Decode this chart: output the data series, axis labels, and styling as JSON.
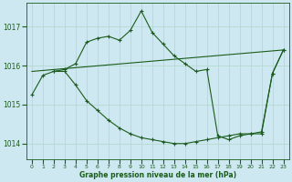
{
  "xlabel": "Graphe pression niveau de la mer (hPa)",
  "background_color": "#cde8f0",
  "grid_color": "#b0d8c8",
  "line_color": "#1a5c1a",
  "ylim": [
    1013.6,
    1017.6
  ],
  "xlim": [
    -0.5,
    23.5
  ],
  "yticks": [
    1014,
    1015,
    1016,
    1017
  ],
  "xticks": [
    0,
    1,
    2,
    3,
    4,
    5,
    6,
    7,
    8,
    9,
    10,
    11,
    12,
    13,
    14,
    15,
    16,
    17,
    18,
    19,
    20,
    21,
    22,
    23
  ],
  "series": [
    {
      "x": [
        0,
        1,
        2,
        3,
        4,
        5,
        6,
        7,
        8,
        9,
        10,
        11,
        12,
        13,
        14,
        15,
        16,
        17,
        18,
        19,
        20,
        21,
        22,
        23
      ],
      "y": [
        1015.25,
        1015.75,
        1015.85,
        1015.9,
        1016.05,
        1016.6,
        1016.7,
        1016.75,
        1016.65,
        1016.9,
        1017.4,
        1016.85,
        1016.55,
        1016.25,
        1016.05,
        1015.85,
        1015.9,
        1014.2,
        1014.1,
        1014.2,
        1014.25,
        1014.25,
        1015.8,
        1016.4
      ]
    },
    {
      "x": [
        0,
        23
      ],
      "y": [
        1015.85,
        1016.4
      ]
    },
    {
      "x": [
        2,
        3,
        4,
        5,
        6,
        7,
        8,
        9,
        10,
        11,
        12,
        13,
        14,
        15,
        16,
        17,
        18,
        19,
        20,
        21,
        22,
        23
      ],
      "y": [
        1015.85,
        1015.85,
        1015.5,
        1015.1,
        1014.85,
        1014.6,
        1014.4,
        1014.25,
        1014.15,
        1014.1,
        1014.05,
        1014.0,
        1014.0,
        1014.05,
        1014.1,
        1014.15,
        1014.2,
        1014.25,
        1014.25,
        1014.3,
        1015.8,
        1016.4
      ]
    }
  ]
}
